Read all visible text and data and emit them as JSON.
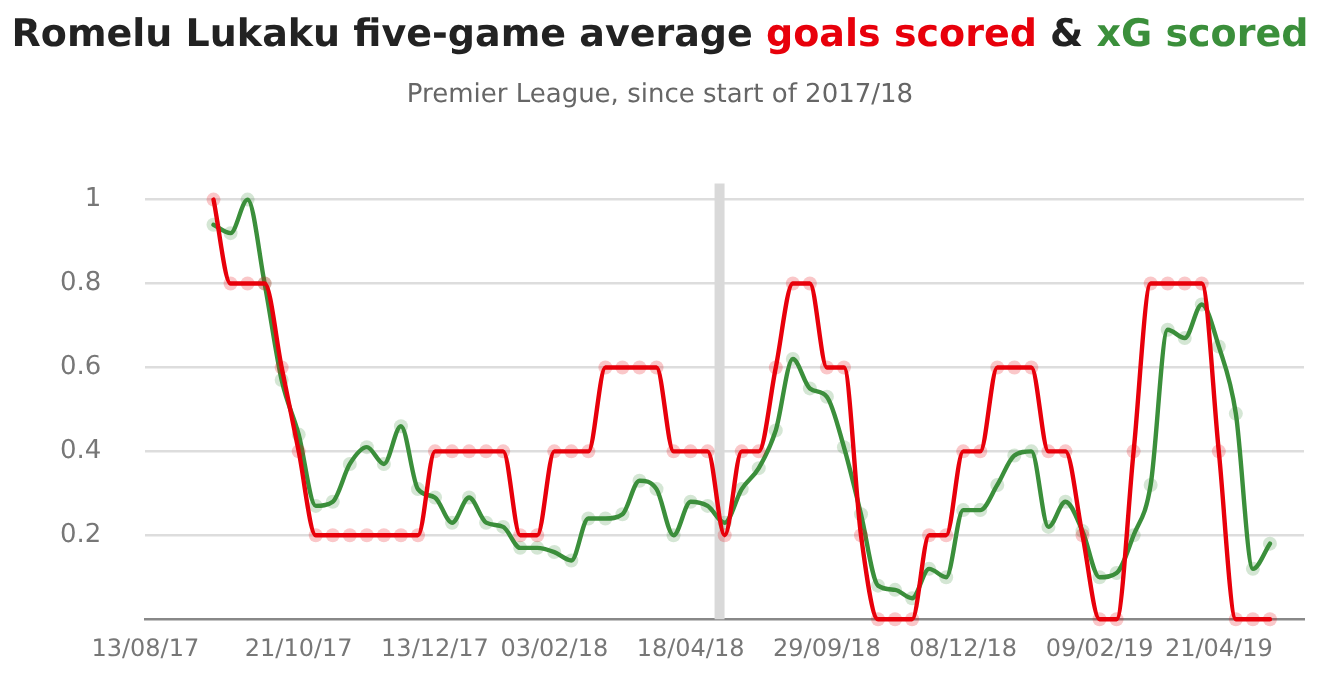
{
  "chart_data": {
    "type": "line",
    "title": "Romelu Lukaku five-game average",
    "subtitle": "Premier League, since start of 2017/18",
    "legend_title": "&",
    "categories": [
      "13/08/17",
      null,
      null,
      null,
      null,
      null,
      null,
      null,
      null,
      "21/10/17",
      null,
      null,
      null,
      null,
      null,
      null,
      null,
      "13/12/17",
      null,
      null,
      null,
      null,
      null,
      null,
      "03/02/18",
      null,
      null,
      null,
      null,
      null,
      null,
      null,
      "18/04/18",
      null,
      null,
      null,
      null,
      null,
      null,
      null,
      "29/09/18",
      null,
      null,
      null,
      null,
      null,
      null,
      null,
      "08/12/18",
      null,
      null,
      null,
      null,
      null,
      null,
      null,
      "09/02/19",
      null,
      null,
      null,
      null,
      null,
      null,
      "21/04/19",
      null,
      null,
      null,
      null,
      null
    ],
    "series": [
      {
        "name": "goals scored",
        "color": "#e8000b",
        "values": [
          null,
          null,
          null,
          null,
          1,
          0.8,
          0.8,
          0.8,
          0.6,
          0.4,
          0.2,
          0.2,
          0.2,
          0.2,
          0.2,
          0.2,
          0.2,
          0.4,
          0.4,
          0.4,
          0.4,
          0.4,
          0.2,
          0.2,
          0.4,
          0.4,
          0.4,
          0.6,
          0.6,
          0.6,
          0.6,
          0.4,
          0.4,
          0.4,
          0.2,
          0.4,
          0.4,
          0.6,
          0.8,
          0.8,
          0.6,
          0.6,
          0.2,
          0,
          0,
          0,
          0.2,
          0.2,
          0.4,
          0.4,
          0.6,
          0.6,
          0.6,
          0.4,
          0.4,
          0.2,
          0,
          0,
          0.4,
          0.8,
          0.8,
          0.8,
          0.8,
          0.4,
          0,
          0,
          0,
          null,
          null
        ]
      },
      {
        "name": "xG scored",
        "color": "#3b8f3b",
        "values": [
          null,
          null,
          null,
          null,
          0.94,
          0.92,
          1.0,
          0.8,
          0.57,
          0.44,
          0.27,
          0.28,
          0.37,
          0.41,
          0.37,
          0.46,
          0.31,
          0.29,
          0.23,
          0.29,
          0.23,
          0.22,
          0.17,
          0.17,
          0.16,
          0.14,
          0.24,
          0.24,
          0.25,
          0.33,
          0.31,
          0.2,
          0.28,
          0.27,
          0.23,
          0.31,
          0.36,
          0.45,
          0.62,
          0.55,
          0.53,
          0.41,
          0.25,
          0.08,
          0.07,
          0.05,
          0.12,
          0.1,
          0.26,
          0.26,
          0.32,
          0.39,
          0.4,
          0.22,
          0.28,
          0.21,
          0.1,
          0.11,
          0.2,
          0.32,
          0.69,
          0.67,
          0.75,
          0.65,
          0.49,
          0.12,
          0.18,
          null,
          null
        ]
      }
    ],
    "ylim": [
      0,
      1
    ],
    "yticks": [
      0.2,
      0.4,
      0.6,
      0.8,
      1
    ],
    "grid": "y",
    "legend": "top",
    "marker": "circle",
    "line_style": "solid"
  }
}
